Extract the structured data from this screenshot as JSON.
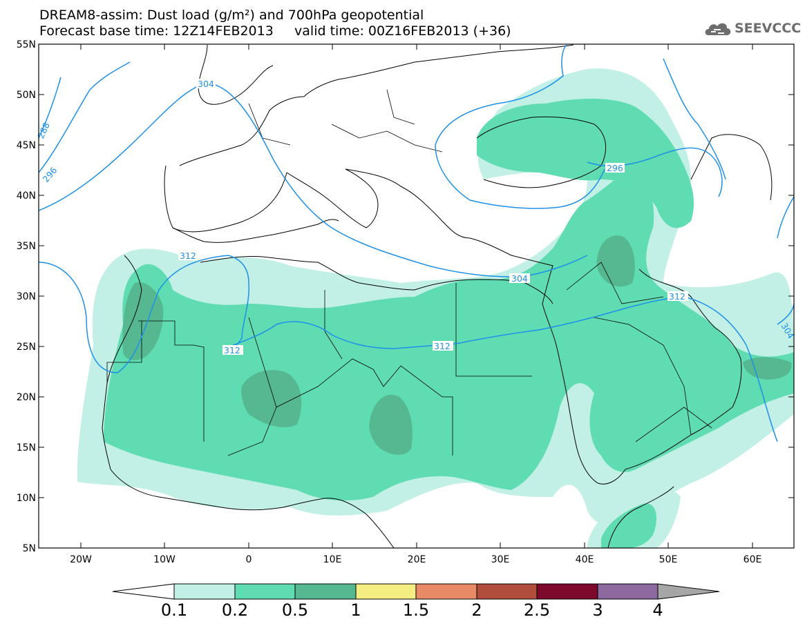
{
  "header": {
    "title": "DREAM8-assim: Dust load (g/m²) and 700hPa geopotential",
    "subtitle": "Forecast base time: 12Z14FEB2013     valid time: 00Z16FEB2013 (+36)"
  },
  "logo": {
    "text": "SEEVCCC",
    "icon": "cloud-icon",
    "color": "#6d6d6d"
  },
  "axes": {
    "lat_labels": [
      "55N",
      "50N",
      "45N",
      "40N",
      "35N",
      "30N",
      "25N",
      "20N",
      "15N",
      "10N",
      "5N"
    ],
    "lon_labels": [
      "20W",
      "10W",
      "0",
      "10E",
      "20E",
      "30E",
      "40E",
      "50E",
      "60E"
    ]
  },
  "contours": {
    "color": "#1e90e8",
    "labels": [
      "304",
      "296",
      "288",
      "296",
      "312",
      "312",
      "304",
      "312",
      "312",
      "312",
      "304"
    ]
  },
  "colorbar": {
    "levels": [
      "0.1",
      "0.2",
      "0.5",
      "1",
      "1.5",
      "2",
      "2.5",
      "3",
      "4"
    ],
    "colors": [
      "#ffffff",
      "#c2f0e6",
      "#5fdcb2",
      "#55b891",
      "#f4ee82",
      "#e88a66",
      "#b04d3c",
      "#7d0a2c",
      "#8c6aa0",
      "#a6a6a6"
    ]
  }
}
